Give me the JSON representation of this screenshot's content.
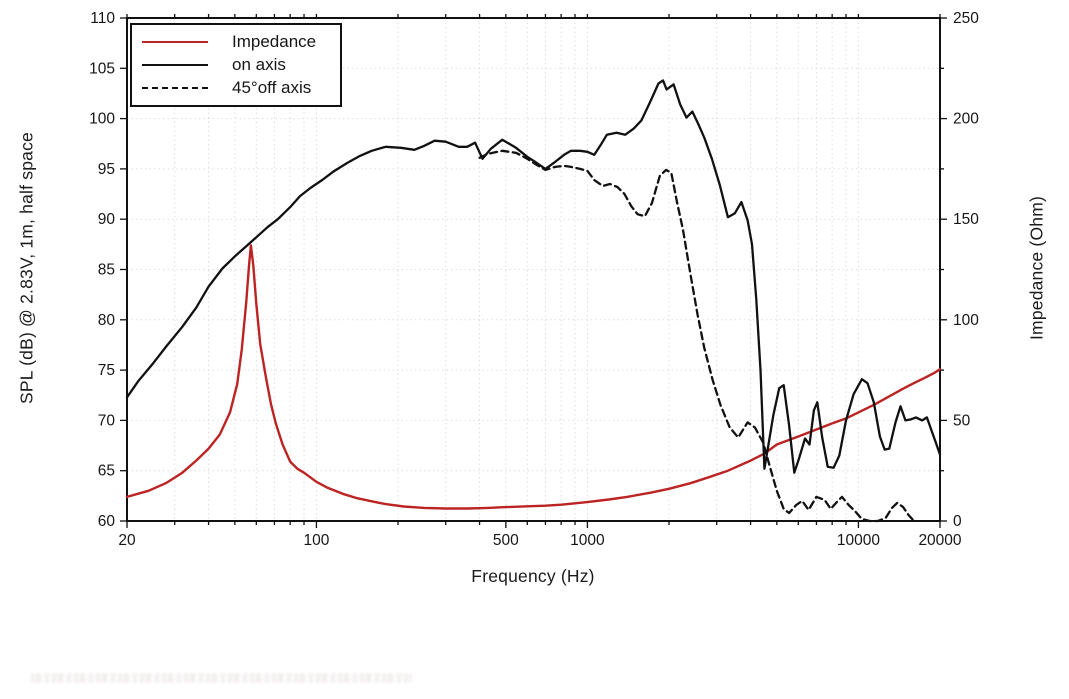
{
  "page": {
    "background": "#ffffff"
  },
  "chart_data": {
    "type": "line",
    "title": "",
    "xlabel": "Frequency (Hz)",
    "ylabel_left": "SPL (dB) @ 2.83V, 1m, half space",
    "ylabel_right": "Impedance (Ohm)",
    "x_scale": "log",
    "xlim": [
      20,
      20000
    ],
    "ylim_left": [
      60,
      110
    ],
    "ylim_right": [
      0,
      250
    ],
    "x_major_ticks": [
      20,
      100,
      500,
      1000,
      10000,
      20000
    ],
    "x_major_tick_labels": [
      "20",
      "100",
      "500",
      "1000",
      "10000",
      "20000"
    ],
    "x_minor_ticks": [
      30,
      40,
      50,
      60,
      70,
      80,
      90,
      200,
      300,
      400,
      600,
      700,
      800,
      900,
      2000,
      3000,
      4000,
      5000,
      6000,
      7000,
      8000,
      9000
    ],
    "y_left_ticks": [
      60,
      65,
      70,
      75,
      80,
      85,
      90,
      95,
      100,
      105,
      110
    ],
    "y_right_major_ticks": [
      0,
      50,
      100,
      150,
      200,
      250
    ],
    "y_right_minor_ticks": [
      25,
      75,
      125,
      175,
      225
    ],
    "grid": true,
    "grid_style": "dotted",
    "colors": {
      "impedance": "#bb2423",
      "spl": "#111111",
      "grid": "#e6dcdc",
      "frame": "#111111",
      "background": "#ffffff"
    },
    "legend": {
      "position": "top-left",
      "items": [
        {
          "label": "Impedance",
          "style": "solid",
          "color": "#bb2423"
        },
        {
          "label": "on axis",
          "style": "solid",
          "color": "#111111"
        },
        {
          "label": "45°off axis",
          "style": "dashed",
          "color": "#111111"
        }
      ]
    },
    "series": [
      {
        "name": "Impedance",
        "axis": "right",
        "unit": "Ohm",
        "style": "solid",
        "color": "#bb2423",
        "points": [
          [
            20,
            12
          ],
          [
            24,
            15
          ],
          [
            28,
            19
          ],
          [
            32,
            24
          ],
          [
            36,
            30
          ],
          [
            40,
            36
          ],
          [
            44,
            43
          ],
          [
            48,
            54
          ],
          [
            51,
            68
          ],
          [
            53,
            85
          ],
          [
            55,
            108
          ],
          [
            56.5,
            128
          ],
          [
            57.3,
            137
          ],
          [
            58.5,
            127
          ],
          [
            60,
            108
          ],
          [
            62,
            88
          ],
          [
            65,
            72
          ],
          [
            68,
            58
          ],
          [
            71,
            48
          ],
          [
            75,
            38
          ],
          [
            80,
            29.5
          ],
          [
            85,
            26
          ],
          [
            90,
            24
          ],
          [
            100,
            19.5
          ],
          [
            110,
            16.5
          ],
          [
            125,
            13.5
          ],
          [
            140,
            11.5
          ],
          [
            160,
            9.8
          ],
          [
            180,
            8.4
          ],
          [
            210,
            7.2
          ],
          [
            250,
            6.5
          ],
          [
            300,
            6.2
          ],
          [
            360,
            6.2
          ],
          [
            430,
            6.5
          ],
          [
            500,
            6.9
          ],
          [
            600,
            7.3
          ],
          [
            700,
            7.6
          ],
          [
            800,
            8.1
          ],
          [
            900,
            8.8
          ],
          [
            1000,
            9.4
          ],
          [
            1200,
            10.7
          ],
          [
            1400,
            12
          ],
          [
            1700,
            14
          ],
          [
            2000,
            16
          ],
          [
            2400,
            18.8
          ],
          [
            2800,
            21.7
          ],
          [
            3300,
            25
          ],
          [
            4000,
            30
          ],
          [
            4500,
            33.5
          ],
          [
            5000,
            38
          ],
          [
            6000,
            42
          ],
          [
            7000,
            45.5
          ],
          [
            8000,
            48.5
          ],
          [
            9000,
            51
          ],
          [
            10000,
            54
          ],
          [
            11500,
            58
          ],
          [
            13000,
            62
          ],
          [
            14500,
            65.5
          ],
          [
            16000,
            68.5
          ],
          [
            17500,
            71
          ],
          [
            19000,
            73.5
          ],
          [
            20000,
            75.5
          ]
        ]
      },
      {
        "name": "on axis",
        "axis": "left",
        "unit": "dB",
        "style": "solid",
        "color": "#111111",
        "points": [
          [
            20,
            72.3
          ],
          [
            22,
            73.9
          ],
          [
            25,
            75.7
          ],
          [
            28,
            77.4
          ],
          [
            32,
            79.3
          ],
          [
            36,
            81.2
          ],
          [
            40,
            83.3
          ],
          [
            45,
            85.1
          ],
          [
            50,
            86.3
          ],
          [
            55,
            87.3
          ],
          [
            60,
            88.2
          ],
          [
            66,
            89.2
          ],
          [
            72,
            90.0
          ],
          [
            80,
            91.2
          ],
          [
            87,
            92.3
          ],
          [
            95,
            93.1
          ],
          [
            105,
            93.9
          ],
          [
            115,
            94.7
          ],
          [
            130,
            95.6
          ],
          [
            145,
            96.3
          ],
          [
            160,
            96.8
          ],
          [
            180,
            97.2
          ],
          [
            205,
            97.1
          ],
          [
            230,
            96.9
          ],
          [
            250,
            97.3
          ],
          [
            273,
            97.8
          ],
          [
            300,
            97.7
          ],
          [
            335,
            97.2
          ],
          [
            360,
            97.2
          ],
          [
            385,
            97.6
          ],
          [
            410,
            96.0
          ],
          [
            440,
            97.0
          ],
          [
            485,
            97.9
          ],
          [
            545,
            97.1
          ],
          [
            600,
            96.2
          ],
          [
            650,
            95.6
          ],
          [
            700,
            95.0
          ],
          [
            760,
            95.7
          ],
          [
            820,
            96.4
          ],
          [
            870,
            96.8
          ],
          [
            940,
            96.8
          ],
          [
            1000,
            96.7
          ],
          [
            1060,
            96.4
          ],
          [
            1120,
            97.4
          ],
          [
            1180,
            98.4
          ],
          [
            1280,
            98.6
          ],
          [
            1380,
            98.4
          ],
          [
            1480,
            99.0
          ],
          [
            1580,
            99.8
          ],
          [
            1700,
            101.6
          ],
          [
            1830,
            103.5
          ],
          [
            1900,
            103.8
          ],
          [
            1960,
            102.9
          ],
          [
            2080,
            103.4
          ],
          [
            2200,
            101.4
          ],
          [
            2320,
            100.1
          ],
          [
            2440,
            100.7
          ],
          [
            2560,
            99.5
          ],
          [
            2700,
            98.1
          ],
          [
            2880,
            96.0
          ],
          [
            3080,
            93.4
          ],
          [
            3300,
            90.2
          ],
          [
            3500,
            90.6
          ],
          [
            3700,
            91.7
          ],
          [
            3900,
            89.9
          ],
          [
            4050,
            87.5
          ],
          [
            4200,
            82
          ],
          [
            4350,
            75
          ],
          [
            4500,
            65.2
          ],
          [
            4650,
            67.5
          ],
          [
            4850,
            70.5
          ],
          [
            5100,
            73.2
          ],
          [
            5300,
            73.5
          ],
          [
            5550,
            69.5
          ],
          [
            5800,
            64.8
          ],
          [
            6050,
            66.3
          ],
          [
            6350,
            68.2
          ],
          [
            6600,
            67.6
          ],
          [
            6850,
            71.0
          ],
          [
            7050,
            71.8
          ],
          [
            7350,
            68.3
          ],
          [
            7700,
            65.4
          ],
          [
            8100,
            65.3
          ],
          [
            8500,
            66.5
          ],
          [
            9000,
            70.0
          ],
          [
            9600,
            72.6
          ],
          [
            10300,
            74.1
          ],
          [
            10800,
            73.7
          ],
          [
            11400,
            71.8
          ],
          [
            12000,
            68.4
          ],
          [
            12500,
            67.1
          ],
          [
            13000,
            67.2
          ],
          [
            13700,
            69.8
          ],
          [
            14300,
            71.4
          ],
          [
            14900,
            70.0
          ],
          [
            15600,
            70.1
          ],
          [
            16300,
            70.3
          ],
          [
            17200,
            70.0
          ],
          [
            17900,
            70.3
          ],
          [
            18600,
            69.0
          ],
          [
            19300,
            67.8
          ],
          [
            20000,
            66.6
          ]
        ]
      },
      {
        "name": "45°off axis",
        "axis": "left",
        "unit": "dB",
        "style": "dashed",
        "color": "#111111",
        "points": [
          [
            400,
            96.1
          ],
          [
            430,
            96.5
          ],
          [
            485,
            96.8
          ],
          [
            545,
            96.6
          ],
          [
            600,
            96.0
          ],
          [
            650,
            95.4
          ],
          [
            700,
            94.9
          ],
          [
            760,
            95.2
          ],
          [
            820,
            95.3
          ],
          [
            870,
            95.2
          ],
          [
            940,
            95.0
          ],
          [
            1000,
            94.8
          ],
          [
            1060,
            93.9
          ],
          [
            1140,
            93.3
          ],
          [
            1210,
            93.5
          ],
          [
            1290,
            93.2
          ],
          [
            1370,
            92.5
          ],
          [
            1450,
            91.3
          ],
          [
            1530,
            90.5
          ],
          [
            1630,
            90.3
          ],
          [
            1730,
            91.6
          ],
          [
            1850,
            94.3
          ],
          [
            1950,
            94.9
          ],
          [
            2040,
            94.6
          ],
          [
            2140,
            91.7
          ],
          [
            2250,
            89.0
          ],
          [
            2400,
            84.5
          ],
          [
            2550,
            80.5
          ],
          [
            2700,
            77.2
          ],
          [
            2900,
            74.0
          ],
          [
            3100,
            71.5
          ],
          [
            3350,
            69.3
          ],
          [
            3600,
            68.3
          ],
          [
            3900,
            69.8
          ],
          [
            4150,
            69.3
          ],
          [
            4450,
            67.8
          ],
          [
            4700,
            65.5
          ],
          [
            5000,
            63.0
          ],
          [
            5300,
            61.2
          ],
          [
            5550,
            60.8
          ],
          [
            5900,
            61.6
          ],
          [
            6200,
            62.0
          ],
          [
            6550,
            61.1
          ],
          [
            7000,
            62.4
          ],
          [
            7500,
            62.1
          ],
          [
            7900,
            61.2
          ],
          [
            8400,
            62.0
          ],
          [
            8700,
            62.4
          ],
          [
            9200,
            61.6
          ],
          [
            9700,
            61.0
          ],
          [
            10300,
            60.2
          ],
          [
            11000,
            60.0
          ],
          [
            11800,
            60.0
          ],
          [
            12600,
            60.3
          ],
          [
            13300,
            61.3
          ],
          [
            13900,
            61.8
          ],
          [
            14600,
            61.4
          ],
          [
            15300,
            60.6
          ],
          [
            15900,
            60.1
          ]
        ]
      }
    ]
  }
}
